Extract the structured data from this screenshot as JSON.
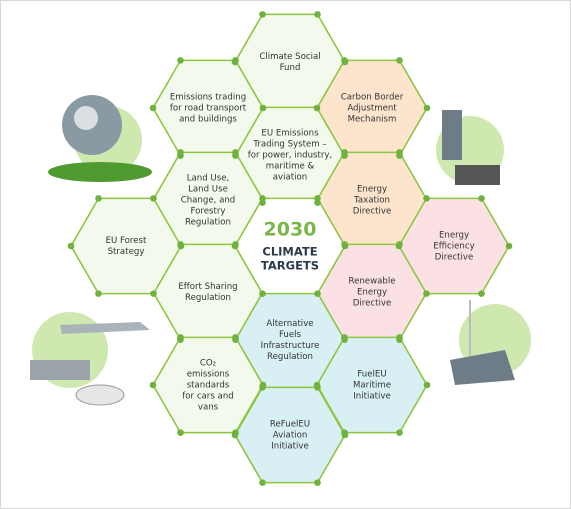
{
  "center": {
    "lines": [
      "2030",
      "CLIMATE",
      "TARGETS"
    ]
  },
  "nodes": [
    {
      "lines": [
        "Climate Social",
        "Fund"
      ]
    },
    {
      "lines": [
        "EU Emissions",
        "Trading System –",
        "for power, industry,",
        "maritime &",
        "aviation"
      ]
    },
    {
      "lines": [
        "Alternative",
        "Fuels",
        "Infrastructure",
        "Regulation"
      ]
    },
    {
      "lines": [
        "ReFuelEU",
        "Aviation",
        "Initiative"
      ]
    },
    {
      "lines": [
        "Emissions trading",
        "for road transport",
        "and buildings"
      ]
    },
    {
      "lines": [
        "Land Use,",
        "Land Use",
        "Change, and",
        "Forestry",
        "Regulation"
      ]
    },
    {
      "lines": [
        "Effort Sharing",
        "Regulation"
      ]
    },
    {
      "lines": [
        "CO₂",
        "emissions",
        "standards",
        "for cars and",
        "vans"
      ]
    },
    {
      "lines": [
        "Carbon Border",
        "Adjustment",
        "Mechanism"
      ]
    },
    {
      "lines": [
        "Energy",
        "Taxation",
        "Directive"
      ]
    },
    {
      "lines": [
        "Renewable",
        "Energy",
        "Directive"
      ]
    },
    {
      "lines": [
        "FuelEU",
        "Maritime",
        "Initiative"
      ]
    },
    {
      "lines": [
        "EU Forest",
        "Strategy"
      ]
    },
    {
      "lines": [
        "Energy",
        "Efficiency",
        "Directive"
      ]
    }
  ]
}
